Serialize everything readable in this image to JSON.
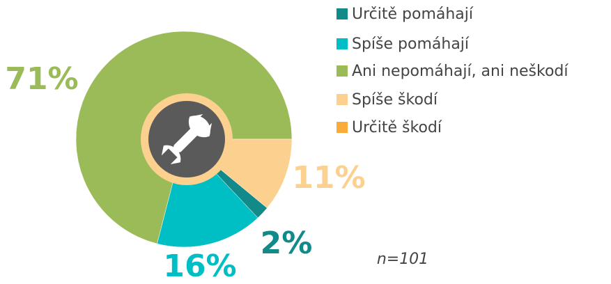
{
  "chart_data": {
    "type": "pie",
    "categories": [
      "Určitě pomáhají",
      "Spíše pomáhají",
      "Ani nepomáhají, ani neškodí",
      "Spíše škodí",
      "Určitě škodí"
    ],
    "values": [
      2,
      16,
      71,
      11,
      0
    ],
    "value_labels": [
      "2%",
      "16%",
      "71%",
      "11%",
      null
    ],
    "colors": [
      "#138a8a",
      "#00bfc4",
      "#9bbb59",
      "#fcd08f",
      "#f9ab3c"
    ],
    "start_angle": 129.6,
    "annotation": "n=101",
    "legend": "right"
  }
}
